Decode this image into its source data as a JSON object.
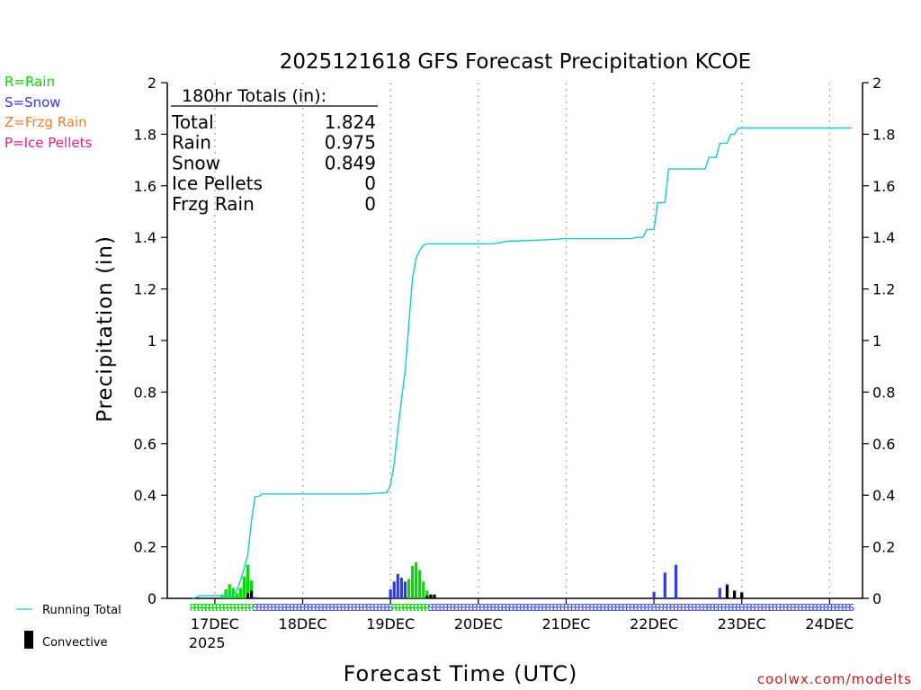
{
  "chart_data": {
    "type": "bar",
    "title": "2025121618 GFS Forecast Precipitation KCOE",
    "xlabel": "Forecast Time (UTC)",
    "ylabel": "Precipitation (in)",
    "ylim": [
      0,
      2
    ],
    "yticks": [
      0,
      0.2,
      0.4,
      0.6,
      0.8,
      1,
      1.2,
      1.4,
      1.6,
      1.8,
      2
    ],
    "ytick_labels": [
      "0",
      "0.2",
      "0.4",
      "0.6",
      "0.8",
      "1",
      "1.2",
      "1.4",
      "1.6",
      "1.8",
      "2"
    ],
    "x_unit": "forecast hour",
    "xlim": [
      -7,
      183
    ],
    "x_ticks": [
      {
        "hour": 6,
        "label": "17DEC",
        "sublabel": "2025"
      },
      {
        "hour": 30,
        "label": "18DEC"
      },
      {
        "hour": 54,
        "label": "19DEC"
      },
      {
        "hour": 78,
        "label": "20DEC"
      },
      {
        "hour": 102,
        "label": "21DEC"
      },
      {
        "hour": 126,
        "label": "22DEC"
      },
      {
        "hour": 150,
        "label": "23DEC"
      },
      {
        "hour": 174,
        "label": "24DEC"
      }
    ],
    "legend": {
      "types": [
        {
          "label": "R=Rain",
          "color": "#00dd00"
        },
        {
          "label": "S=Snow",
          "color": "#2b3cf0"
        },
        {
          "label": "Z=Frzg Rain",
          "color": "#f08030"
        },
        {
          "label": "P=Ice Pellets",
          "color": "#ee1a8c"
        }
      ],
      "running_total": "Running Total",
      "convective": "Convective"
    },
    "totals": {
      "header": "180hr Totals (in):",
      "rows": [
        {
          "label": "Total",
          "value": "1.824"
        },
        {
          "label": "Rain",
          "value": "0.975"
        },
        {
          "label": "Snow",
          "value": "0.849"
        },
        {
          "label": "Ice Pellets",
          "value": "0"
        },
        {
          "label": "Frzg Rain",
          "value": "0"
        }
      ]
    },
    "series": [
      {
        "name": "Rain",
        "color": "#00dd00",
        "points": [
          [
            8,
            0.015
          ],
          [
            9,
            0.035
          ],
          [
            10,
            0.055
          ],
          [
            11,
            0.04
          ],
          [
            12,
            0.02
          ],
          [
            13,
            0.04
          ],
          [
            14,
            0.085
          ],
          [
            15,
            0.13
          ],
          [
            16,
            0.07
          ]
        ],
        "convective": [
          [
            15,
            0.02
          ],
          [
            16,
            0.03
          ]
        ]
      },
      {
        "name": "Snow",
        "color": "#2b3cf0",
        "points": [
          [
            17,
            0.005
          ],
          [
            54,
            0.035
          ],
          [
            55,
            0.065
          ],
          [
            56,
            0.095
          ],
          [
            57,
            0.08
          ],
          [
            58,
            0.065
          ],
          [
            126,
            0.025
          ],
          [
            129,
            0.1
          ],
          [
            132,
            0.13
          ],
          [
            144,
            0.04
          ],
          [
            146,
            0.055
          ],
          [
            148,
            0.03
          ],
          [
            150,
            0.025
          ]
        ],
        "convective": [
          [
            146,
            0.05
          ],
          [
            148,
            0.03
          ],
          [
            150,
            0.02
          ]
        ]
      },
      {
        "name": "Rain",
        "color": "#00dd00",
        "points": [
          [
            59,
            0.075
          ],
          [
            60,
            0.125
          ],
          [
            61,
            0.14
          ],
          [
            62,
            0.11
          ],
          [
            63,
            0.065
          ],
          [
            64,
            0.03
          ],
          [
            65,
            0.015
          ]
        ],
        "convective": [
          [
            64,
            0.01
          ],
          [
            65,
            0.015
          ],
          [
            66,
            0.015
          ]
        ]
      }
    ],
    "running_total": {
      "name": "Running Total",
      "color": "#11cccc",
      "points": [
        [
          0,
          0
        ],
        [
          2,
          0.01
        ],
        [
          11,
          0.012
        ],
        [
          12,
          0.03
        ],
        [
          13,
          0.07
        ],
        [
          14,
          0.115
        ],
        [
          15,
          0.17
        ],
        [
          16,
          0.3
        ],
        [
          17,
          0.395
        ],
        [
          18,
          0.395
        ],
        [
          19,
          0.405
        ],
        [
          46,
          0.405
        ],
        [
          47,
          0.405
        ],
        [
          53,
          0.41
        ],
        [
          54,
          0.44
        ],
        [
          55,
          0.52
        ],
        [
          56,
          0.65
        ],
        [
          57,
          0.77
        ],
        [
          58,
          0.88
        ],
        [
          59,
          1.06
        ],
        [
          60,
          1.24
        ],
        [
          61,
          1.32
        ],
        [
          62,
          1.35
        ],
        [
          63,
          1.37
        ],
        [
          64,
          1.375
        ],
        [
          82,
          1.375
        ],
        [
          84,
          1.38
        ],
        [
          86,
          1.385
        ],
        [
          96,
          1.39
        ],
        [
          102,
          1.395
        ],
        [
          120,
          1.395
        ],
        [
          121,
          1.4
        ],
        [
          123,
          1.4
        ],
        [
          124,
          1.43
        ],
        [
          126,
          1.43
        ],
        [
          127,
          1.535
        ],
        [
          129,
          1.535
        ],
        [
          130,
          1.665
        ],
        [
          140,
          1.665
        ],
        [
          141,
          1.71
        ],
        [
          143,
          1.71
        ],
        [
          144,
          1.765
        ],
        [
          146,
          1.765
        ],
        [
          147,
          1.8
        ],
        [
          148,
          1.8
        ],
        [
          149,
          1.823
        ],
        [
          150,
          1.824
        ],
        [
          180,
          1.824
        ]
      ]
    },
    "type_markers": [
      {
        "type": "R",
        "from": 0,
        "to": 16,
        "color": "#00dd00"
      },
      {
        "type": "S",
        "from": 17,
        "to": 54,
        "color": "#2b3cf0"
      },
      {
        "type": "R",
        "from": 55,
        "to": 64,
        "color": "#00dd00"
      },
      {
        "type": "S",
        "from": 65,
        "to": 180,
        "color": "#2b3cf0"
      }
    ],
    "watermark": "coolwx.com/modelts"
  }
}
